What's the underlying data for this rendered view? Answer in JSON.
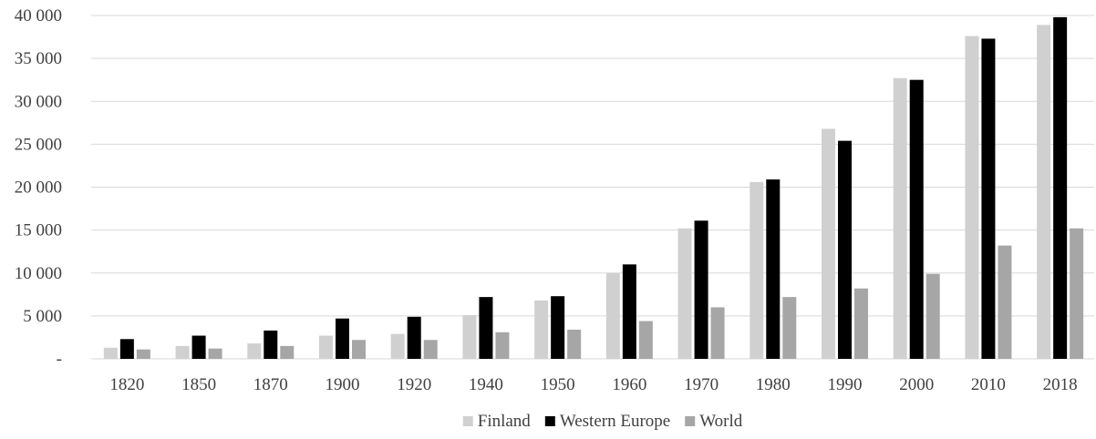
{
  "chart_data": {
    "type": "bar",
    "title": "",
    "xlabel": "",
    "ylabel": "",
    "categories": [
      "1820",
      "1850",
      "1870",
      "1900",
      "1920",
      "1940",
      "1950",
      "1960",
      "1970",
      "1980",
      "1990",
      "2000",
      "2010",
      "2018"
    ],
    "series": [
      {
        "name": "Finland",
        "color": "#d0d0d0",
        "values": [
          1300,
          1500,
          1800,
          2700,
          2900,
          5100,
          6800,
          10000,
          15200,
          20600,
          26800,
          32700,
          37600,
          38900
        ]
      },
      {
        "name": "Western Europe",
        "color": "#000000",
        "values": [
          2300,
          2700,
          3300,
          4700,
          4900,
          7200,
          7300,
          11000,
          16100,
          20900,
          25400,
          32500,
          37300,
          39800
        ]
      },
      {
        "name": "World",
        "color": "#a6a6a6",
        "values": [
          1100,
          1200,
          1500,
          2200,
          2200,
          3100,
          3400,
          4400,
          6000,
          7200,
          8200,
          9900,
          13200,
          15200
        ]
      }
    ],
    "ylim": [
      0,
      40000
    ],
    "yticks": [
      {
        "value": 0,
        "label": "-"
      },
      {
        "value": 5000,
        "label": "5 000"
      },
      {
        "value": 10000,
        "label": "10 000"
      },
      {
        "value": 15000,
        "label": "15 000"
      },
      {
        "value": 20000,
        "label": "20 000"
      },
      {
        "value": 25000,
        "label": "25 000"
      },
      {
        "value": 30000,
        "label": "30 000"
      },
      {
        "value": 35000,
        "label": "35 000"
      },
      {
        "value": 40000,
        "label": "40 000"
      }
    ],
    "grid": true,
    "legend_position": "bottom"
  }
}
